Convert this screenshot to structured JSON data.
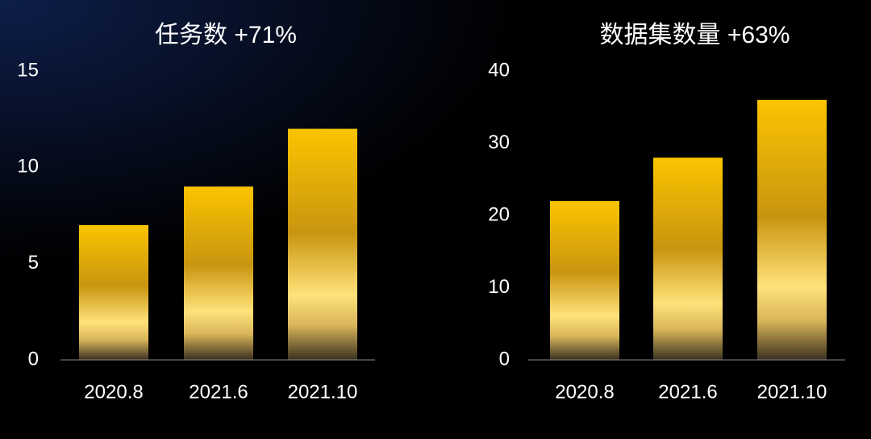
{
  "chart_data": [
    {
      "type": "bar",
      "title": "任务数 +71%",
      "categories": [
        "2020.8",
        "2021.6",
        "2021.10"
      ],
      "values": [
        7,
        9,
        12
      ],
      "color": "#f5c000",
      "ylim": [
        0,
        15
      ],
      "yticks": [
        0,
        5,
        10,
        15
      ]
    },
    {
      "type": "bar",
      "title": "数据集数量 +63%",
      "categories": [
        "2020.8",
        "2021.6",
        "2021.10"
      ],
      "values": [
        22,
        28,
        36
      ],
      "color": "#f5c000",
      "ylim": [
        0,
        40
      ],
      "yticks": [
        0,
        10,
        20,
        30,
        40
      ]
    }
  ]
}
